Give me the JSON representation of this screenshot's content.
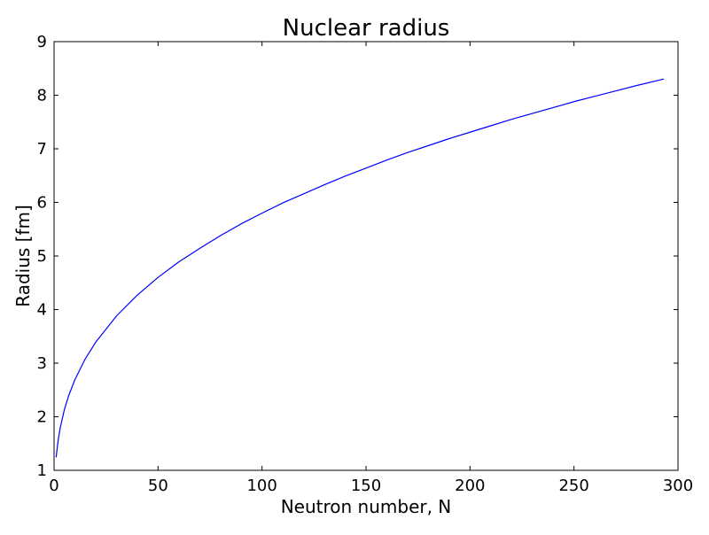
{
  "chart_data": {
    "type": "line",
    "title": "Nuclear radius",
    "xlabel": "Neutron number, N",
    "ylabel": "Radius [fm]",
    "xlim": [
      0,
      300
    ],
    "ylim": [
      1,
      9
    ],
    "xticks": [
      0,
      50,
      100,
      150,
      200,
      250,
      300
    ],
    "yticks": [
      1,
      2,
      3,
      4,
      5,
      6,
      7,
      8,
      9
    ],
    "grid": false,
    "legend": "none",
    "series": [
      {
        "color": "#0000ff",
        "x": [
          1,
          2,
          3,
          5,
          7,
          10,
          15,
          20,
          30,
          40,
          50,
          60,
          70,
          80,
          90,
          100,
          110,
          120,
          130,
          140,
          150,
          160,
          170,
          180,
          190,
          200,
          210,
          220,
          230,
          240,
          250,
          260,
          270,
          280,
          293
        ],
        "y": [
          1.25,
          1.57,
          1.8,
          2.14,
          2.39,
          2.69,
          3.08,
          3.39,
          3.88,
          4.27,
          4.6,
          4.89,
          5.14,
          5.38,
          5.6,
          5.8,
          5.99,
          6.16,
          6.33,
          6.49,
          6.64,
          6.79,
          6.93,
          7.06,
          7.19,
          7.31,
          7.43,
          7.55,
          7.66,
          7.77,
          7.88,
          7.98,
          8.08,
          8.18,
          8.3
        ]
      }
    ]
  }
}
